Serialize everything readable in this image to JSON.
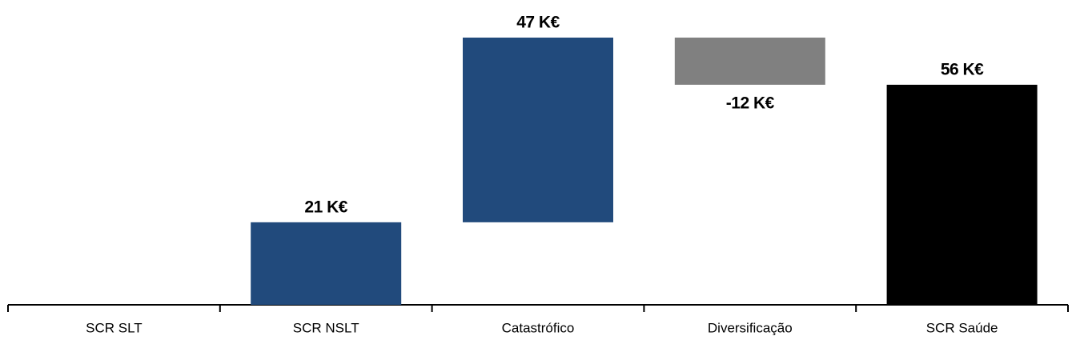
{
  "chart_data": {
    "type": "waterfall",
    "categories": [
      "SCR SLT",
      "SCR NSLT",
      "Catastrófico",
      "Diversificação",
      "SCR Saúde"
    ],
    "values": [
      0,
      21,
      47,
      -12,
      56
    ],
    "value_labels": [
      null,
      "21 K€",
      "47 K€",
      "-12 K€",
      "56 K€"
    ],
    "is_total": [
      false,
      false,
      false,
      false,
      true
    ],
    "colors": [
      "#214a7c",
      "#214a7c",
      "#214a7c",
      "#808080",
      "#000000"
    ]
  }
}
